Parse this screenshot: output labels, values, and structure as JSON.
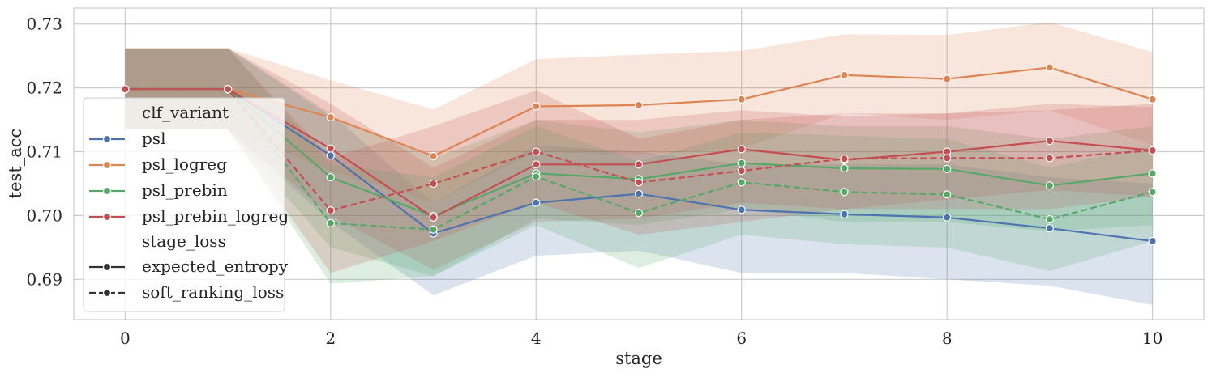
{
  "chart_data": {
    "type": "line",
    "xlabel": "stage",
    "ylabel": "test_acc",
    "xlim": [
      -0.5,
      10.5
    ],
    "ylim": [
      0.6837,
      0.7325
    ],
    "xticks": [
      0,
      2,
      4,
      6,
      8,
      10
    ],
    "yticks": [
      0.69,
      0.7,
      0.71,
      0.72,
      0.73
    ],
    "xtick_labels": [
      "0",
      "2",
      "4",
      "6",
      "8",
      "10"
    ],
    "ytick_labels": [
      "0.69",
      "0.70",
      "0.71",
      "0.72",
      "0.73"
    ],
    "grid": true,
    "legend_position": "left",
    "legend": {
      "hue_title": "clf_variant",
      "style_title": "stage_loss",
      "hue_entries": [
        {
          "label": "psl",
          "color": "#4c72b0"
        },
        {
          "label": "psl_logreg",
          "color": "#dd8452"
        },
        {
          "label": "psl_prebin",
          "color": "#55a868"
        },
        {
          "label": "psl_prebin_logreg",
          "color": "#c44e52"
        }
      ],
      "style_entries": [
        {
          "label": "expected_entropy",
          "dash": "solid"
        },
        {
          "label": "soft_ranking_loss",
          "dash": "dashed"
        }
      ]
    },
    "x": [
      0,
      1,
      2,
      3,
      4,
      5,
      6,
      7,
      8,
      9,
      10
    ],
    "series": [
      {
        "name": "psl | expected_entropy",
        "color": "#4c72b0",
        "dash": "solid",
        "values": [
          0.7198,
          0.7198,
          0.7094,
          0.6972,
          0.702,
          0.7034,
          0.7009,
          0.7002,
          0.6997,
          0.698,
          0.696
        ],
        "lower": [
          0.7135,
          0.7135,
          0.699,
          0.6875,
          0.6937,
          0.6945,
          0.691,
          0.691,
          0.69,
          0.689,
          0.686
        ],
        "upper": [
          0.7262,
          0.7262,
          0.716,
          0.702,
          0.711,
          0.71,
          0.708,
          0.708,
          0.708,
          0.706,
          0.705
        ]
      },
      {
        "name": "psl_logreg | expected_entropy",
        "color": "#dd8452",
        "dash": "solid",
        "values": [
          0.7198,
          0.7198,
          0.7154,
          0.7093,
          0.7171,
          0.7173,
          0.7182,
          0.722,
          0.7214,
          0.7232,
          0.7182
        ],
        "lower": [
          0.7135,
          0.7135,
          0.707,
          0.702,
          0.71,
          0.7095,
          0.7105,
          0.716,
          0.715,
          0.7165,
          0.711
        ],
        "upper": [
          0.7262,
          0.7262,
          0.7212,
          0.7166,
          0.7245,
          0.7252,
          0.7258,
          0.7284,
          0.7283,
          0.7303,
          0.7256
        ]
      },
      {
        "name": "psl_prebin | expected_entropy",
        "color": "#55a868",
        "dash": "solid",
        "values": [
          0.7198,
          0.7198,
          0.706,
          0.6999,
          0.7066,
          0.7057,
          0.7082,
          0.7074,
          0.7073,
          0.7047,
          0.7066
        ],
        "lower": [
          0.7135,
          0.7135,
          0.695,
          0.6905,
          0.6995,
          0.6985,
          0.701,
          0.699,
          0.699,
          0.6975,
          0.6985
        ],
        "upper": [
          0.7262,
          0.7262,
          0.7155,
          0.709,
          0.715,
          0.713,
          0.715,
          0.714,
          0.714,
          0.712,
          0.714
        ]
      },
      {
        "name": "psl_prebin_logreg | expected_entropy",
        "color": "#c44e52",
        "dash": "solid",
        "values": [
          0.7198,
          0.7198,
          0.7105,
          0.6997,
          0.708,
          0.708,
          0.7104,
          0.7087,
          0.71,
          0.7117,
          0.7102
        ],
        "lower": [
          0.7135,
          0.7135,
          0.7,
          0.6915,
          0.699,
          0.6995,
          0.702,
          0.701,
          0.7025,
          0.704,
          0.703
        ],
        "upper": [
          0.7262,
          0.7262,
          0.7175,
          0.7075,
          0.715,
          0.715,
          0.7165,
          0.7155,
          0.716,
          0.7175,
          0.717
        ]
      },
      {
        "name": "psl_prebin | soft_ranking_loss",
        "color": "#55a868",
        "dash": "dashed",
        "values": [
          0.7198,
          0.7198,
          0.6988,
          0.6978,
          0.7061,
          0.7004,
          0.7052,
          0.7037,
          0.7033,
          0.6994,
          0.7037
        ],
        "lower": [
          0.7135,
          0.7135,
          0.6893,
          0.6905,
          0.6985,
          0.6918,
          0.697,
          0.6955,
          0.695,
          0.6913,
          0.696
        ],
        "upper": [
          0.7262,
          0.7262,
          0.708,
          0.706,
          0.714,
          0.7085,
          0.713,
          0.7125,
          0.712,
          0.7075,
          0.711
        ]
      },
      {
        "name": "psl_prebin_logreg | soft_ranking_loss",
        "color": "#c44e52",
        "dash": "dashed",
        "values": [
          0.7198,
          0.7198,
          0.7008,
          0.705,
          0.71,
          0.7052,
          0.707,
          0.7089,
          0.709,
          0.709,
          0.7102
        ],
        "lower": [
          0.7135,
          0.7135,
          0.691,
          0.696,
          0.702,
          0.697,
          0.699,
          0.701,
          0.701,
          0.701,
          0.703
        ],
        "upper": [
          0.7262,
          0.7262,
          0.709,
          0.714,
          0.7196,
          0.712,
          0.715,
          0.716,
          0.716,
          0.7165,
          0.7175
        ]
      }
    ]
  }
}
